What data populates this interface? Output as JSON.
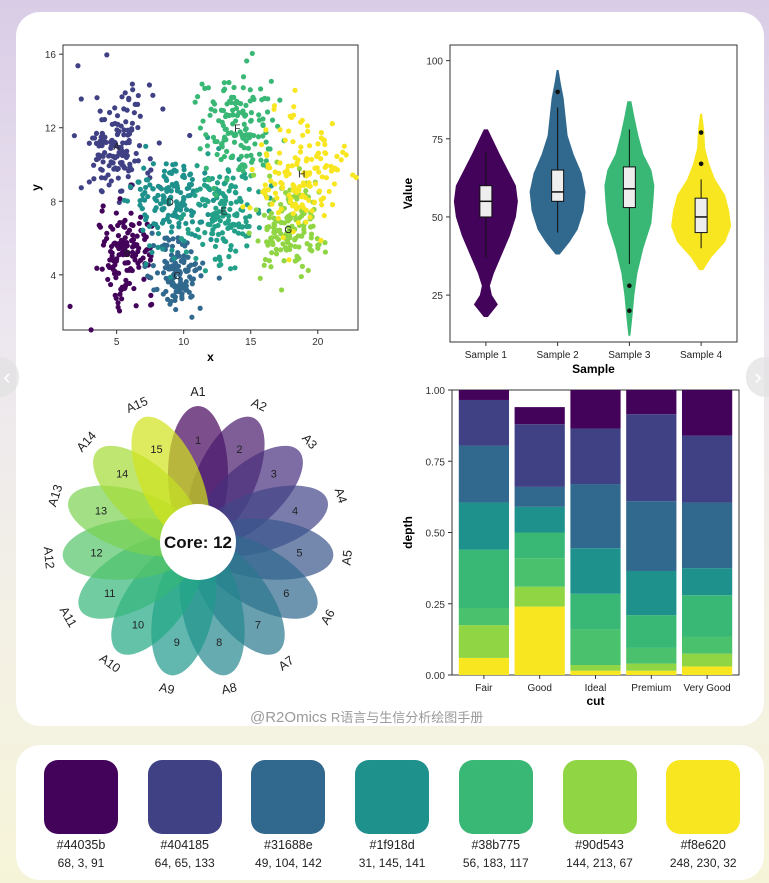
{
  "watermark": {
    "handle": "@R2Omics",
    "text": "R语言与生信分析绘图手册"
  },
  "nav": {
    "prev_icon": "chevron-left-icon",
    "next_icon": "chevron-right-icon"
  },
  "palette": [
    {
      "hex": "#44035b",
      "rgb": "68, 3, 91"
    },
    {
      "hex": "#404185",
      "rgb": "64, 65, 133"
    },
    {
      "hex": "#31688e",
      "rgb": "49, 104, 142"
    },
    {
      "hex": "#1f918d",
      "rgb": "31, 145, 141"
    },
    {
      "hex": "#38b775",
      "rgb": "56, 183, 117"
    },
    {
      "hex": "#90d543",
      "rgb": "144, 213, 67"
    },
    {
      "hex": "#f8e620",
      "rgb": "248, 230, 32"
    }
  ],
  "chart_data": [
    {
      "type": "scatter",
      "xlabel": "x",
      "ylabel": "y",
      "xlim": [
        1,
        23
      ],
      "ylim": [
        1,
        16.5
      ],
      "xticks": [
        5,
        10,
        15,
        20
      ],
      "yticks": [
        4,
        8,
        12,
        16
      ],
      "clusters": [
        {
          "name": "A",
          "cx": 5.0,
          "cy": 11.0,
          "sdx": 1.4,
          "sdy": 1.5,
          "n": 150,
          "color": "#404185"
        },
        {
          "name": "B",
          "cx": 5.8,
          "cy": 5.2,
          "sdx": 1.0,
          "sdy": 1.2,
          "n": 140,
          "color": "#44035b"
        },
        {
          "name": "C",
          "cx": 9.5,
          "cy": 4.0,
          "sdx": 1.0,
          "sdy": 1.0,
          "n": 130,
          "color": "#31688e"
        },
        {
          "name": "D",
          "cx": 9.0,
          "cy": 8.0,
          "sdx": 1.4,
          "sdy": 1.3,
          "n": 150,
          "color": "#1f918d"
        },
        {
          "name": "E",
          "cx": 13.0,
          "cy": 7.5,
          "sdx": 1.3,
          "sdy": 1.4,
          "n": 150,
          "color": "#23a088"
        },
        {
          "name": "F",
          "cx": 14.0,
          "cy": 12.0,
          "sdx": 1.4,
          "sdy": 1.4,
          "n": 150,
          "color": "#38b775"
        },
        {
          "name": "G",
          "cx": 17.8,
          "cy": 6.5,
          "sdx": 1.3,
          "sdy": 1.2,
          "n": 150,
          "color": "#90d543"
        },
        {
          "name": "H",
          "cx": 18.8,
          "cy": 9.5,
          "sdx": 1.5,
          "sdy": 1.6,
          "n": 150,
          "color": "#f8e620"
        }
      ]
    },
    {
      "type": "violin",
      "xlabel": "Sample",
      "ylabel": "Value",
      "ylim": [
        10,
        105
      ],
      "yticks": [
        25,
        50,
        75,
        100
      ],
      "categories": [
        "Sample 1",
        "Sample 2",
        "Sample 3",
        "Sample 4"
      ],
      "series": [
        {
          "name": "Sample 1",
          "color": "#44035b",
          "q1": 50,
          "median": 55,
          "q3": 60,
          "whisker_low": 37,
          "whisker_high": 71,
          "outliers": [],
          "violin": [
            [
              18,
              2
            ],
            [
              22,
              12
            ],
            [
              25,
              6
            ],
            [
              28,
              4
            ],
            [
              32,
              8
            ],
            [
              38,
              16
            ],
            [
              44,
              24
            ],
            [
              50,
              30
            ],
            [
              55,
              32
            ],
            [
              60,
              30
            ],
            [
              65,
              22
            ],
            [
              70,
              14
            ],
            [
              74,
              8
            ],
            [
              78,
              2
            ]
          ]
        },
        {
          "name": "Sample 2",
          "color": "#31688e",
          "q1": 55,
          "median": 58,
          "q3": 65,
          "whisker_low": 45,
          "whisker_high": 85,
          "outliers": [
            90
          ],
          "violin": [
            [
              38,
              2
            ],
            [
              42,
              12
            ],
            [
              46,
              20
            ],
            [
              52,
              26
            ],
            [
              58,
              28
            ],
            [
              64,
              24
            ],
            [
              70,
              16
            ],
            [
              76,
              10
            ],
            [
              82,
              8
            ],
            [
              88,
              6
            ],
            [
              93,
              3
            ],
            [
              97,
              1
            ]
          ]
        },
        {
          "name": "Sample 3",
          "color": "#38b775",
          "q1": 53,
          "median": 59,
          "q3": 66,
          "whisker_low": 35,
          "whisker_high": 78,
          "outliers": [
            28,
            20
          ],
          "violin": [
            [
              12,
              1
            ],
            [
              18,
              3
            ],
            [
              25,
              5
            ],
            [
              32,
              8
            ],
            [
              40,
              14
            ],
            [
              48,
              22
            ],
            [
              55,
              24
            ],
            [
              60,
              25
            ],
            [
              65,
              22
            ],
            [
              70,
              14
            ],
            [
              76,
              9
            ],
            [
              82,
              5
            ],
            [
              87,
              2
            ]
          ]
        },
        {
          "name": "Sample 4",
          "color": "#f8e620",
          "q1": 45,
          "median": 50,
          "q3": 56,
          "whisker_low": 40,
          "whisker_high": 62,
          "outliers": [
            77,
            67
          ],
          "violin": [
            [
              33,
              2
            ],
            [
              37,
              10
            ],
            [
              42,
              24
            ],
            [
              47,
              30
            ],
            [
              52,
              28
            ],
            [
              57,
              24
            ],
            [
              62,
              14
            ],
            [
              67,
              8
            ],
            [
              72,
              4
            ],
            [
              78,
              3
            ],
            [
              83,
              1
            ]
          ]
        }
      ]
    },
    {
      "type": "flower",
      "center_label": "Core: 12",
      "petals": [
        {
          "set": "A1",
          "count": "1"
        },
        {
          "set": "A2",
          "count": "2"
        },
        {
          "set": "A3",
          "count": "3"
        },
        {
          "set": "A4",
          "count": "4"
        },
        {
          "set": "A5",
          "count": "5"
        },
        {
          "set": "A6",
          "count": "6"
        },
        {
          "set": "A7",
          "count": "7"
        },
        {
          "set": "A8",
          "count": "8"
        },
        {
          "set": "A9",
          "count": "9"
        },
        {
          "set": "A10",
          "count": "10"
        },
        {
          "set": "A11",
          "count": "11"
        },
        {
          "set": "A12",
          "count": "12"
        },
        {
          "set": "A13",
          "count": "13"
        },
        {
          "set": "A14",
          "count": "14"
        },
        {
          "set": "A15",
          "count": "15"
        }
      ]
    },
    {
      "type": "bar",
      "stacked": true,
      "xlabel": "cut",
      "ylabel": "depth",
      "ylim": [
        0,
        1
      ],
      "yticks": [
        "0.00",
        "0.25",
        "0.50",
        "0.75",
        "1.00"
      ],
      "categories": [
        "Fair",
        "Good",
        "Ideal",
        "Premium",
        "Very Good"
      ],
      "series": [
        {
          "color": "#f8e620",
          "values": [
            0.06,
            0.24,
            0.015,
            0.015,
            0.03
          ]
        },
        {
          "color": "#90d543",
          "values": [
            0.115,
            0.07,
            0.02,
            0.025,
            0.045
          ]
        },
        {
          "color": "#4ac16d",
          "values": [
            0.06,
            0.1,
            0.125,
            0.055,
            0.06
          ]
        },
        {
          "color": "#38b775",
          "values": [
            0.205,
            0.09,
            0.125,
            0.115,
            0.145
          ]
        },
        {
          "color": "#1f918d",
          "values": [
            0.165,
            0.09,
            0.16,
            0.155,
            0.095
          ]
        },
        {
          "color": "#31688e",
          "values": [
            0.2,
            0.07,
            0.225,
            0.245,
            0.23
          ]
        },
        {
          "color": "#404185",
          "values": [
            0.16,
            0.22,
            0.195,
            0.305,
            0.235
          ]
        },
        {
          "color": "#44035b",
          "values": [
            0.035,
            0.06,
            0.135,
            0.085,
            0.16
          ]
        }
      ]
    }
  ]
}
